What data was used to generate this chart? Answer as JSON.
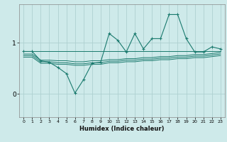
{
  "xlabel": "Humidex (Indice chaleur)",
  "background_color": "#ceeaea",
  "grid_color": "#aed0d0",
  "line_color": "#1a7a6e",
  "xlim": [
    -0.5,
    23.5
  ],
  "ylim": [
    -0.45,
    1.75
  ],
  "yticks": [
    0,
    1
  ],
  "xticks": [
    0,
    1,
    2,
    3,
    4,
    5,
    6,
    7,
    8,
    9,
    10,
    11,
    12,
    13,
    14,
    15,
    16,
    17,
    18,
    19,
    20,
    21,
    22,
    23
  ],
  "series": {
    "jagged": [
      0.83,
      0.83,
      0.65,
      0.62,
      0.52,
      0.4,
      0.02,
      0.28,
      0.6,
      0.62,
      1.18,
      1.05,
      0.82,
      1.18,
      0.88,
      1.08,
      1.08,
      1.55,
      1.55,
      1.08,
      0.82,
      0.82,
      0.92,
      0.88
    ],
    "line1": [
      0.83,
      0.83,
      0.83,
      0.83,
      0.83,
      0.83,
      0.83,
      0.83,
      0.83,
      0.83,
      0.83,
      0.83,
      0.83,
      0.83,
      0.83,
      0.83,
      0.83,
      0.83,
      0.83,
      0.83,
      0.83,
      0.83,
      0.83,
      0.83
    ],
    "line2": [
      0.78,
      0.78,
      0.66,
      0.66,
      0.65,
      0.65,
      0.63,
      0.63,
      0.65,
      0.65,
      0.67,
      0.67,
      0.69,
      0.69,
      0.71,
      0.71,
      0.73,
      0.73,
      0.75,
      0.75,
      0.77,
      0.77,
      0.79,
      0.81
    ],
    "line3": [
      0.75,
      0.75,
      0.63,
      0.63,
      0.61,
      0.61,
      0.59,
      0.59,
      0.61,
      0.61,
      0.64,
      0.64,
      0.66,
      0.66,
      0.68,
      0.68,
      0.7,
      0.7,
      0.72,
      0.72,
      0.74,
      0.74,
      0.76,
      0.78
    ],
    "line4": [
      0.72,
      0.72,
      0.6,
      0.6,
      0.58,
      0.58,
      0.56,
      0.56,
      0.58,
      0.58,
      0.61,
      0.61,
      0.63,
      0.63,
      0.65,
      0.65,
      0.67,
      0.67,
      0.69,
      0.69,
      0.71,
      0.71,
      0.73,
      0.75
    ]
  }
}
